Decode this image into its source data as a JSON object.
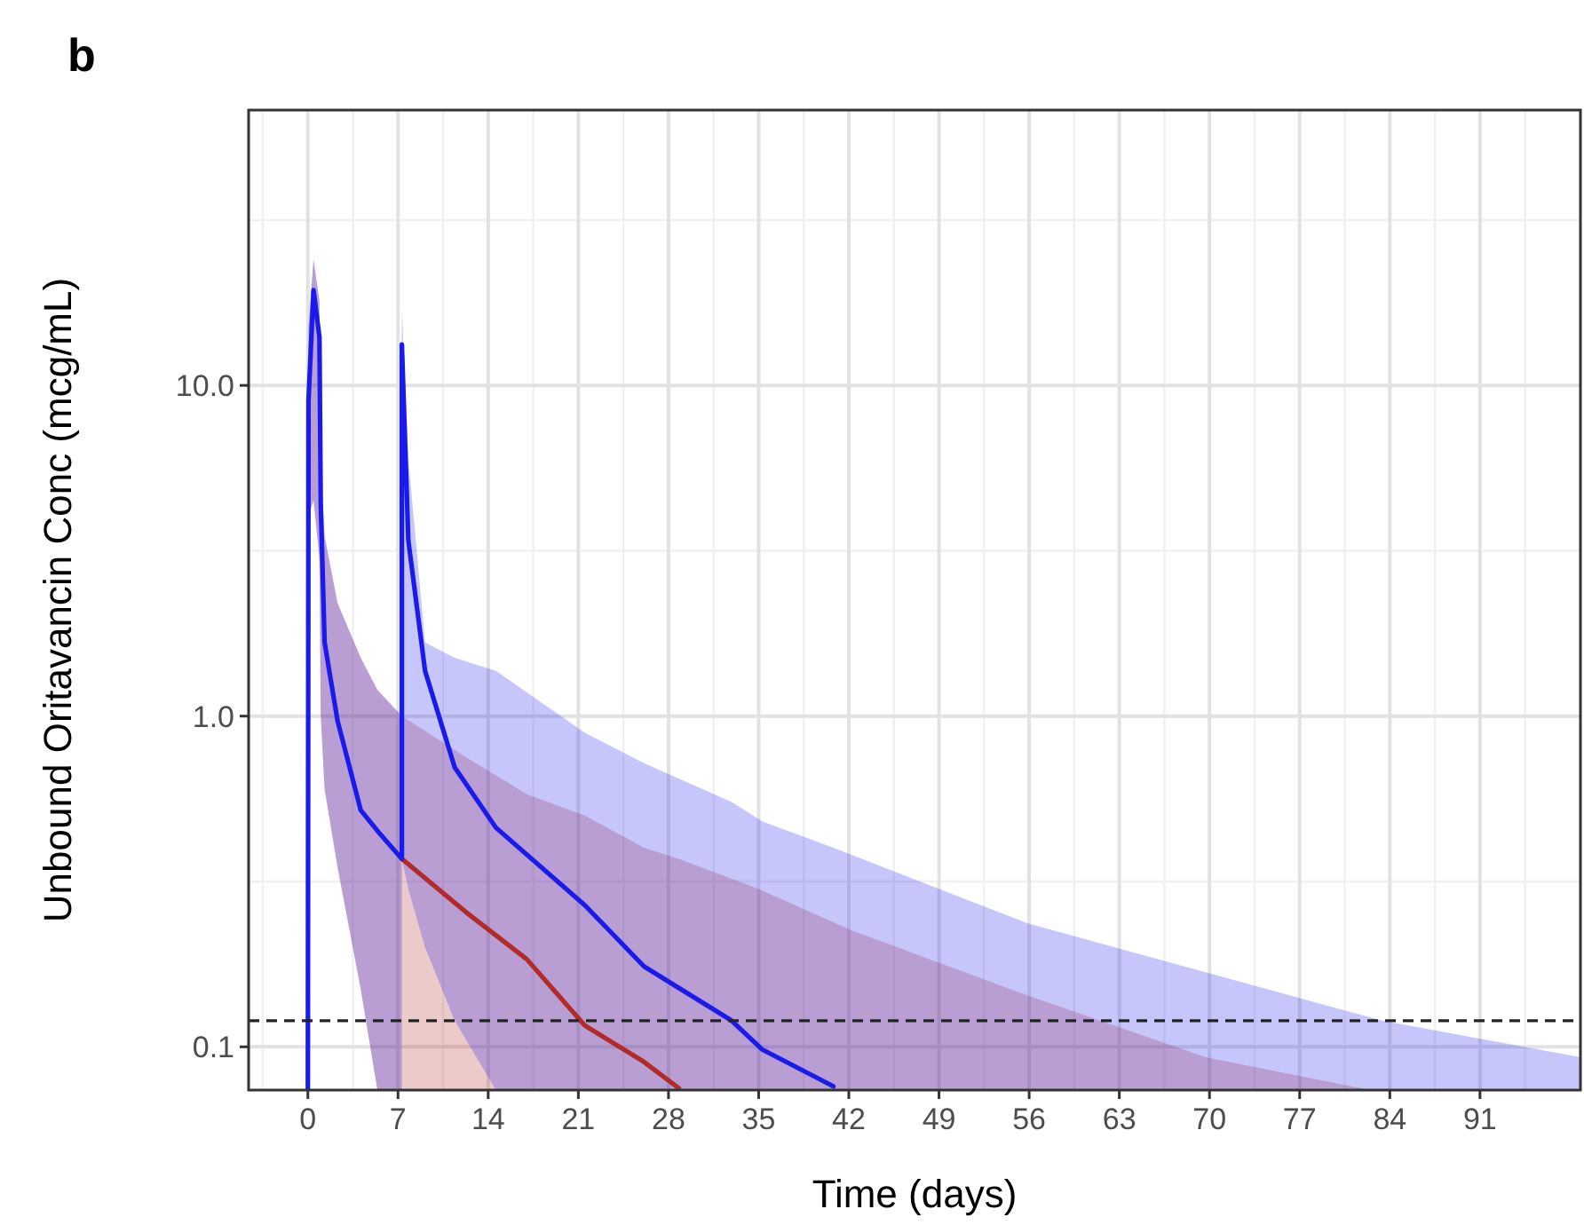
{
  "chart_data": {
    "type": "line",
    "title": "b",
    "xlabel": "Time (days)",
    "ylabel": "Unbound Oritavancin Conc (mcg/mL)",
    "log": "y",
    "grid": true,
    "line_style": "solid",
    "marker": "none",
    "xlim": [
      -4.6,
      98.8
    ],
    "xticks": [
      0,
      7,
      14,
      21,
      28,
      35,
      42,
      49,
      56,
      63,
      70,
      77,
      84,
      91
    ],
    "ylim": [
      0.074,
      68
    ],
    "yticks": [
      {
        "value": 0.1,
        "label": "0.1"
      },
      {
        "value": 1,
        "label": "1.0"
      },
      {
        "value": 10,
        "label": "10.0"
      }
    ],
    "ref_lines": [
      {
        "axis": "y",
        "value": 0.12,
        "color": "#222222",
        "line_style": "dashed"
      }
    ],
    "series": [
      {
        "color": "#b22a2a",
        "x": [
          0,
          0.05,
          0.44,
          0.9,
          1.0,
          1.3,
          2.3,
          4.1,
          5.4,
          7.3,
          12.3,
          17,
          21.5,
          26.1,
          28.8,
          35,
          42.2,
          55.9,
          69.7,
          82.5
        ],
        "values": [
          null,
          null,
          null,
          null,
          null,
          null,
          null,
          null,
          null,
          0.37,
          0.255,
          0.184,
          0.116,
          0.09,
          0.075,
          null,
          null,
          null,
          null,
          null
        ],
        "upper": [
          0.074,
          15,
          24,
          18,
          5.5,
          3.5,
          2.2,
          1.5,
          1.2,
          1.0,
          0.75,
          0.58,
          0.5,
          0.4,
          0.37,
          0.3,
          0.225,
          0.143,
          0.093,
          0.074
        ],
        "lower": [
          0.074,
          4,
          4.5,
          3,
          1.0,
          0.6,
          0.35,
          0.15,
          0.074,
          0.074,
          0.074,
          0.074,
          0.074,
          0.074,
          0.074,
          0.074,
          0.074,
          0.074,
          0.074,
          0.074
        ]
      },
      {
        "color": "#1a1aeb",
        "x": [
          0,
          0.05,
          0.44,
          0.9,
          1.0,
          1.3,
          2.3,
          4.1,
          5.4,
          7.3,
          7.3,
          7.8,
          9.1,
          11.4,
          14.6,
          21.5,
          26.1,
          32.9,
          35.3,
          40.8,
          55.9,
          69.7,
          83.4,
          98.8
        ],
        "values": [
          0.074,
          9,
          19.4,
          14,
          4.4,
          1.67,
          0.97,
          0.52,
          0.45,
          0.37,
          13.3,
          3.4,
          1.37,
          0.7,
          0.46,
          0.268,
          0.175,
          0.12,
          0.098,
          0.076,
          null,
          null,
          null,
          null
        ],
        "upper": [
          0.074,
          15,
          24,
          18,
          5.5,
          3.5,
          2.2,
          1.5,
          1.2,
          1.0,
          17,
          6,
          1.67,
          1.5,
          1.37,
          0.89,
          0.72,
          0.55,
          0.48,
          0.4,
          0.236,
          0.168,
          0.12,
          0.093
        ],
        "lower": [
          0.074,
          4,
          4.5,
          3,
          1.0,
          0.6,
          0.35,
          0.15,
          0.074,
          0.074,
          0.37,
          0.3,
          0.2,
          0.12,
          0.074,
          0.074,
          0.074,
          0.074,
          0.074,
          0.074,
          0.074,
          0.074,
          0.074,
          0.074
        ]
      }
    ]
  }
}
